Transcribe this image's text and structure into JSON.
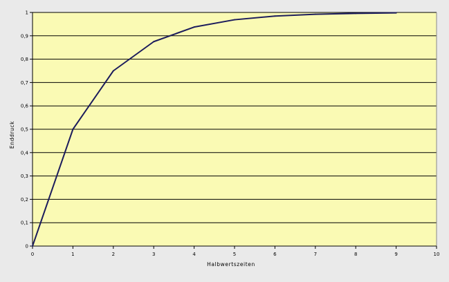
{
  "chart_data": {
    "type": "line",
    "title": "",
    "xlabel": "Halbwertszeiten",
    "ylabel": "Enddruck",
    "xlim": [
      0,
      10
    ],
    "ylim": [
      0,
      1
    ],
    "x_ticks": [
      "0",
      "1",
      "2",
      "3",
      "4",
      "5",
      "6",
      "7",
      "8",
      "9",
      "10"
    ],
    "y_ticks": [
      "0",
      "0,1",
      "0,2",
      "0,3",
      "0,4",
      "0,5",
      "0,6",
      "0,7",
      "0,8",
      "0,9",
      "1"
    ],
    "grid": "horizontal",
    "legend": "none",
    "series": [
      {
        "x": [
          0,
          1,
          2,
          3,
          4,
          5,
          6,
          7,
          8,
          9
        ],
        "values": [
          0,
          0.5,
          0.75,
          0.875,
          0.9375,
          0.96875,
          0.984375,
          0.9921875,
          0.99609375,
          0.998046875
        ]
      }
    ],
    "colors": {
      "plot_background": "#fafab4",
      "page_background": "#eaeaea",
      "line": "#1c1c5c",
      "gridline": "#000000"
    }
  }
}
